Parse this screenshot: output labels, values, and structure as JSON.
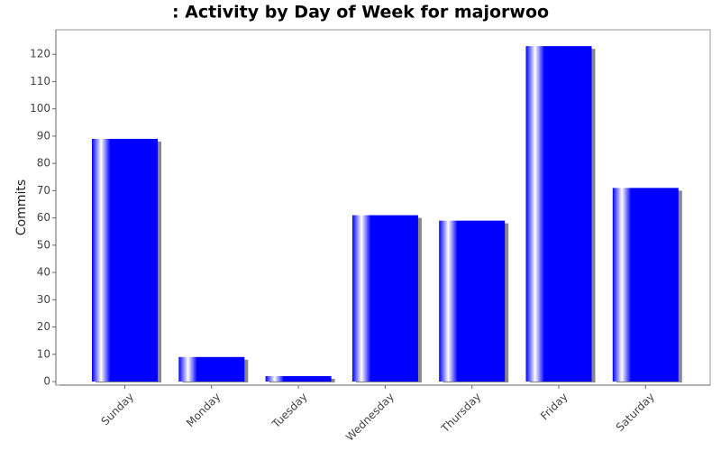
{
  "chart_data": {
    "type": "bar",
    "title": ": Activity by Day of Week for majorwoo",
    "y_label": "Commits",
    "categories": [
      "Sunday",
      "Monday",
      "Tuesday",
      "Wednesday",
      "Thursday",
      "Friday",
      "Saturday"
    ],
    "values": [
      89,
      9,
      2,
      61,
      59,
      123,
      71
    ],
    "color": "#0000ff",
    "ylim": [
      0,
      129
    ],
    "yticks": [
      0,
      10,
      20,
      30,
      40,
      50,
      60,
      70,
      80,
      90,
      100,
      110,
      120
    ]
  }
}
